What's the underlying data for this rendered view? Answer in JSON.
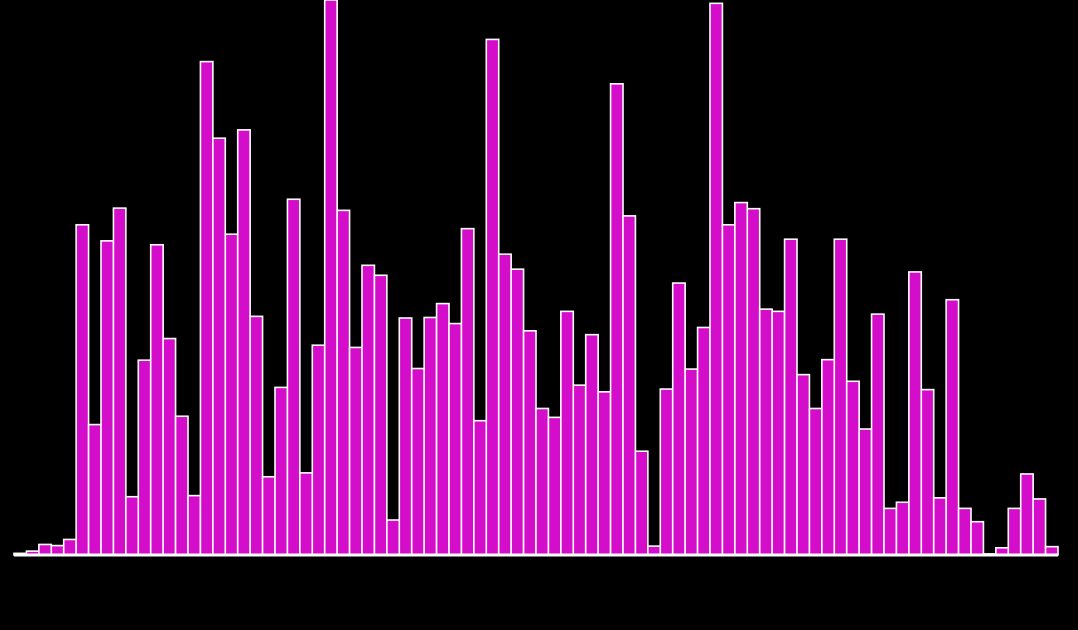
{
  "chart_data": {
    "type": "bar",
    "title": "",
    "xlabel": "",
    "ylabel": "",
    "ylim": [
      0,
      100
    ],
    "grid": false,
    "colors": {
      "background": "#000000",
      "bar_fill": "#d30dc9",
      "bar_edge": "#ffffff",
      "axis": "#ffffff"
    },
    "values": [
      0.3,
      0.7,
      1.9,
      1.7,
      2.8,
      59.5,
      23.5,
      56.6,
      62.5,
      10.5,
      35.1,
      55.9,
      39.0,
      25.0,
      10.7,
      88.9,
      75.1,
      57.8,
      76.6,
      43.0,
      14.1,
      30.2,
      64.1,
      14.8,
      37.8,
      100.0,
      62.1,
      37.4,
      52.2,
      50.4,
      6.3,
      42.7,
      33.6,
      42.8,
      45.3,
      41.7,
      58.8,
      24.2,
      92.9,
      54.2,
      51.5,
      40.4,
      26.4,
      24.8,
      43.9,
      30.6,
      39.7,
      29.4,
      84.9,
      61.1,
      18.7,
      1.6,
      29.9,
      49.0,
      33.5,
      41.0,
      99.4,
      59.5,
      63.5,
      62.4,
      44.3,
      43.9,
      56.9,
      32.5,
      26.4,
      35.2,
      56.9,
      31.3,
      22.7,
      43.4,
      8.4,
      9.5,
      51.0,
      29.8,
      10.3,
      46.0,
      8.4,
      6.0,
      0.2,
      1.3,
      8.4,
      14.6,
      10.1,
      1.5
    ]
  }
}
